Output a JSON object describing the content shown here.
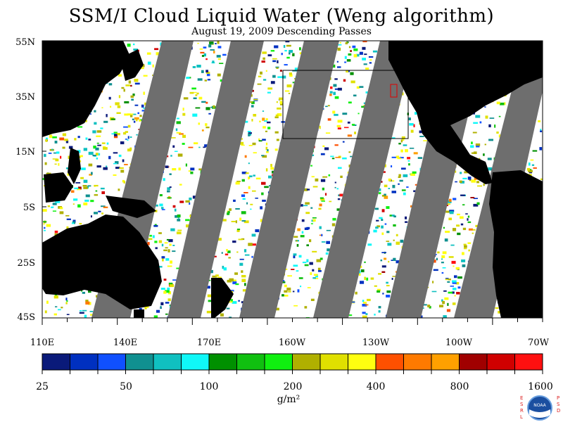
{
  "title": "SSM/I Cloud Liquid Water (Weng algorithm)",
  "subtitle": "August 19, 2009  Descending Passes",
  "map": {
    "lat_labels": [
      "55N",
      "35N",
      "15N",
      "5S",
      "25S",
      "45S"
    ],
    "lon_labels": [
      "110E",
      "140E",
      "170E",
      "160W",
      "130W",
      "100W",
      "70W"
    ],
    "colors": {
      "ocean": "#ffffff",
      "land": "#000000",
      "no_data_gap": "#6e6e6e"
    }
  },
  "colorbar": {
    "units": "g/m²",
    "tick_labels": [
      "25",
      "50",
      "100",
      "200",
      "400",
      "800",
      "1600"
    ],
    "colors": [
      "#0a1a7a",
      "#0030c0",
      "#1050ff",
      "#109090",
      "#10c0c0",
      "#10f8f8",
      "#009000",
      "#10c010",
      "#10f010",
      "#b0b000",
      "#e0e000",
      "#ffff10",
      "#ff5000",
      "#ff7a00",
      "#ffa000",
      "#a00000",
      "#d00000",
      "#ff1010"
    ]
  },
  "logo": {
    "left_letters": "ESRL",
    "right_letters": "PSD",
    "badge_text": "NOAA"
  }
}
